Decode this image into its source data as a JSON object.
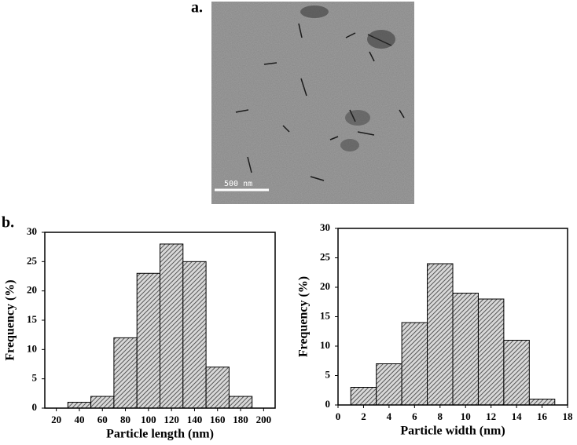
{
  "panel_labels": [
    "a.",
    "b."
  ],
  "scale_bar_label": "500 nm",
  "chart_data": [
    {
      "type": "histogram",
      "x_label": "Particle length (nm)",
      "y_label": "Frequency (%)",
      "bins": [
        30,
        50,
        70,
        90,
        110,
        130,
        150,
        170,
        190
      ],
      "values": [
        1,
        2,
        12,
        23,
        28,
        25,
        7,
        2
      ],
      "color": "#555555",
      "xlim": [
        10,
        210
      ],
      "xticks": [
        20,
        40,
        60,
        80,
        100,
        120,
        140,
        160,
        180,
        200
      ],
      "ylim": [
        0,
        30
      ],
      "yticks": [
        0,
        5,
        10,
        15,
        20,
        25,
        30
      ]
    },
    {
      "type": "histogram",
      "x_label": "Particle width (nm)",
      "y_label": "Frequency (%)",
      "bins": [
        1,
        3,
        5,
        7,
        9,
        11,
        13,
        15,
        17
      ],
      "values": [
        3,
        7,
        14,
        24,
        19,
        18,
        11,
        1
      ],
      "color": "#555555",
      "xlim": [
        0,
        18
      ],
      "xticks": [
        0,
        2,
        4,
        6,
        8,
        10,
        12,
        14,
        16,
        18
      ],
      "ylim": [
        0,
        30
      ],
      "yticks": [
        0,
        5,
        10,
        15,
        20,
        25,
        30
      ]
    }
  ]
}
